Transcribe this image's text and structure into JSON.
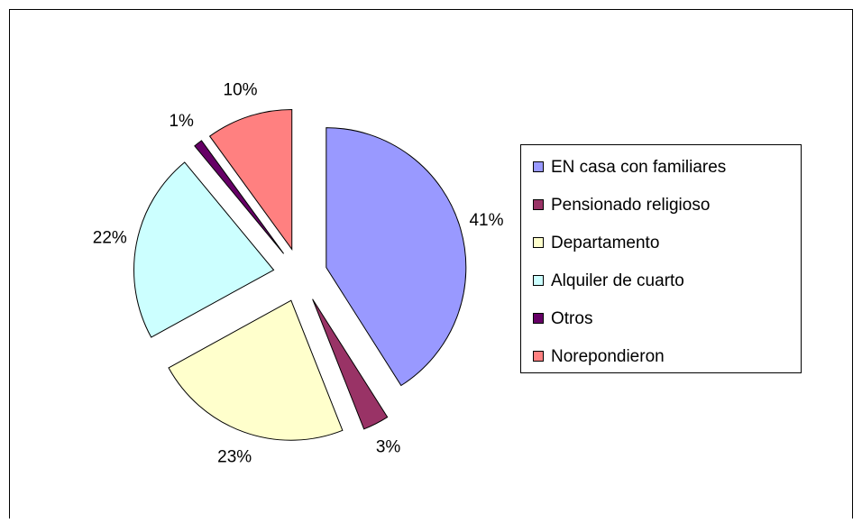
{
  "chart_data": {
    "type": "pie",
    "categories": [
      "EN casa con familiares",
      "Pensionado religioso",
      "Departamento",
      "Alquiler de cuarto",
      "Otros",
      "Norepondieron"
    ],
    "values": [
      41,
      3,
      23,
      22,
      1,
      10
    ],
    "value_labels": [
      "41%",
      "3%",
      "23%",
      "22%",
      "1%",
      "10%"
    ],
    "colors": [
      "#9999ff",
      "#993366",
      "#ffffcc",
      "#ccffff",
      "#660066",
      "#ff8080"
    ],
    "exploded": true,
    "legend": "right"
  }
}
